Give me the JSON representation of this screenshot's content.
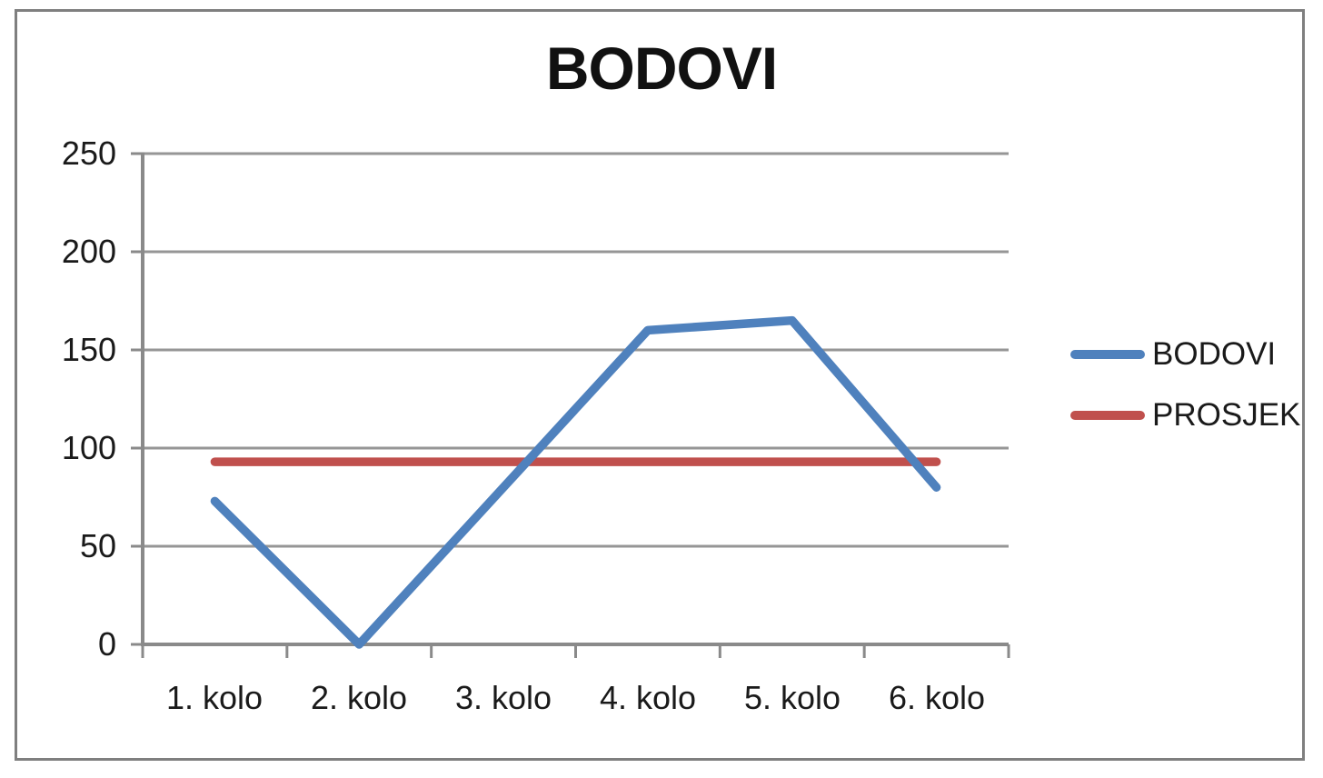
{
  "chart_data": {
    "type": "line",
    "title": "BODOVI",
    "categories": [
      "1. kolo",
      "2. kolo",
      "3. kolo",
      "4. kolo",
      "5. kolo",
      "6. kolo"
    ],
    "series": [
      {
        "name": "BODOVI",
        "color": "#4F81BD",
        "values": [
          73,
          0,
          80,
          160,
          165,
          80
        ]
      },
      {
        "name": "PROSJEK",
        "color": "#C0504D",
        "values": [
          93,
          93,
          93,
          93,
          93,
          93
        ]
      }
    ],
    "y_ticks": [
      250,
      200,
      150,
      100,
      50,
      0
    ],
    "ylim": [
      0,
      250
    ],
    "grid": true,
    "legend_position": "right",
    "colors": {
      "gridline": "#969696",
      "axis": "#8a8a8a",
      "border": "#7f7f7f",
      "text": "#1a1a1a"
    }
  }
}
